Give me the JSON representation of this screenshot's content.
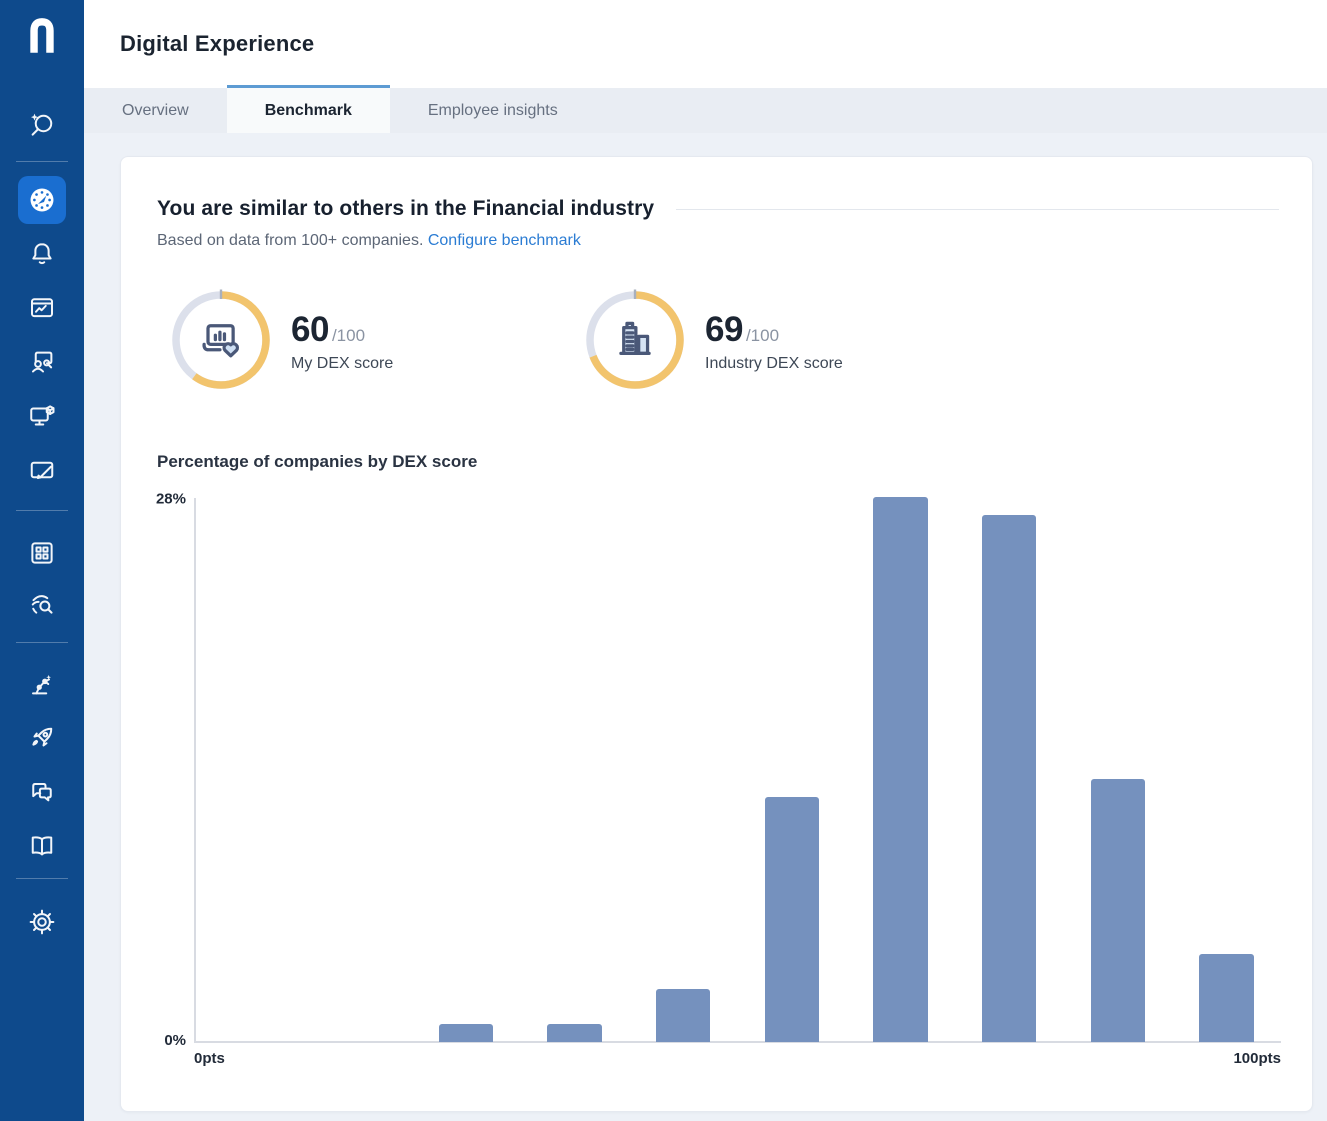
{
  "app": {
    "logo_letter": "n"
  },
  "sidebar": {
    "items": [
      {
        "icon": "ai-search-icon"
      },
      {
        "icon": "dashboard-gauge-icon",
        "active": true
      },
      {
        "icon": "alerts-bell-icon"
      },
      {
        "icon": "monitor-chart-icon"
      },
      {
        "icon": "people-screen-icon"
      },
      {
        "icon": "monitor-cube-icon"
      },
      {
        "icon": "card-pen-icon"
      },
      {
        "icon": "library-grid-icon"
      },
      {
        "icon": "fingerprint-search-icon"
      },
      {
        "icon": "automation-arm-icon"
      },
      {
        "icon": "rocket-icon"
      },
      {
        "icon": "chat-bubbles-icon"
      },
      {
        "icon": "book-icon"
      },
      {
        "icon": "settings-gear-icon"
      }
    ]
  },
  "header": {
    "title": "Digital Experience"
  },
  "tabs": [
    {
      "label": "Overview",
      "active": false
    },
    {
      "label": "Benchmark",
      "active": true
    },
    {
      "label": "Employee insights",
      "active": false
    }
  ],
  "benchmark": {
    "title": "You are similar to others in the Financial industry",
    "subtitle": "Based on data from 100+ companies.",
    "link_label": "Configure benchmark",
    "scores": [
      {
        "value": 60,
        "denom": "/100",
        "label": "My DEX score",
        "icon": "laptop-heart-icon"
      },
      {
        "value": 69,
        "denom": "/100",
        "label": "Industry DEX score",
        "icon": "buildings-icon"
      }
    ],
    "gauge_colors": {
      "fill": "#F2C46D",
      "track": "#DCE0EB",
      "tick": "#A8B0BE"
    }
  },
  "chart_data": {
    "type": "bar",
    "title": "Percentage of companies by DEX score",
    "x": [
      25,
      35,
      45,
      55,
      65,
      75,
      85,
      95
    ],
    "values": [
      0.9,
      0.9,
      2.7,
      12.6,
      28,
      27.1,
      13.5,
      4.5
    ],
    "bar_width_pts": 5,
    "xlim": [
      0,
      100
    ],
    "ylim": [
      0,
      28
    ],
    "ylabel_top": "28%",
    "ylabel_bottom": "0%",
    "xlabel_left": "0pts",
    "xlabel_right": "100pts",
    "bar_color": "#7591BE",
    "grid": false,
    "legend": false
  },
  "colors": {
    "sidebar_bg": "#0E4A8C",
    "sidebar_active": "#1A6ED0",
    "tabbar_bg": "#E9EDF3",
    "tab_active_border": "#5D9BD3",
    "page_bg": "#EDF1F7",
    "link": "#2B7CD3",
    "axis": "#D8DBE2"
  }
}
